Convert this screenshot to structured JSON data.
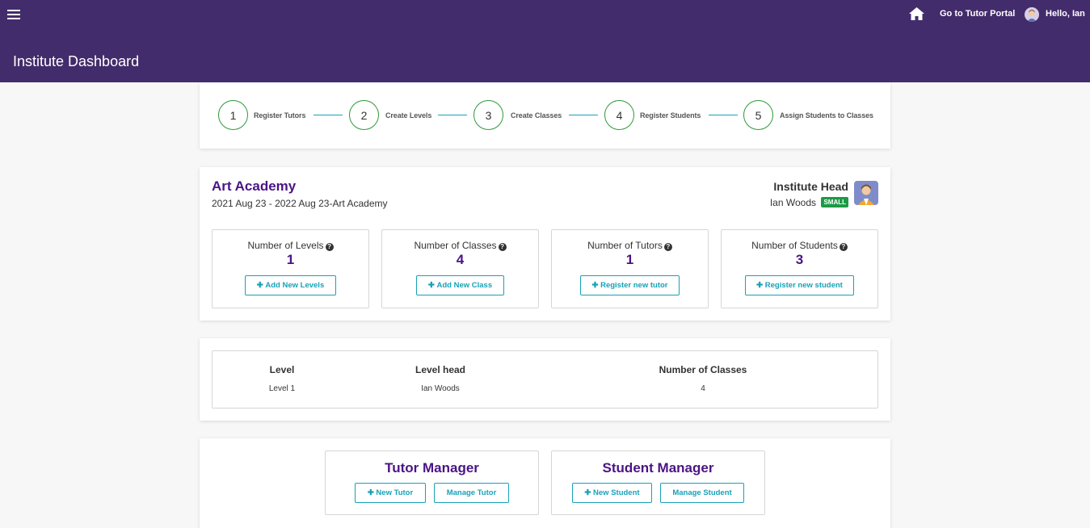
{
  "header": {
    "menu_icon": "hamburger-icon",
    "home_icon": "home-icon",
    "tutor_portal_label": "Go to Tutor Portal",
    "greeting": "Hello, Ian",
    "page_title": "Institute Dashboard"
  },
  "stepper": {
    "steps": [
      {
        "number": "1",
        "label": "Register Tutors"
      },
      {
        "number": "2",
        "label": "Create Levels"
      },
      {
        "number": "3",
        "label": "Create Classes"
      },
      {
        "number": "4",
        "label": "Register Students"
      },
      {
        "number": "5",
        "label": "Assign Students to Classes"
      }
    ],
    "accent": "#2e9a3a",
    "line_color": "#17a2b8"
  },
  "institute": {
    "name": "Art Academy",
    "period": "2021 Aug 23 - 2022 Aug 23-Art Academy",
    "head_title": "Institute Head",
    "head_name": "Ian Woods",
    "plan_badge": "SMALL",
    "stats": [
      {
        "label": "Number of Levels",
        "value": "1",
        "button": "Add New Levels"
      },
      {
        "label": "Number of Classes",
        "value": "4",
        "button": "Add New Class"
      },
      {
        "label": "Number of Tutors",
        "value": "1",
        "button": "Register new tutor"
      },
      {
        "label": "Number of Students",
        "value": "3",
        "button": "Register new student"
      }
    ]
  },
  "levels_table": {
    "columns": [
      "Level",
      "Level head",
      "Number of Classes"
    ],
    "rows": [
      [
        "Level 1",
        "Ian Woods",
        "4"
      ]
    ]
  },
  "managers": {
    "tutor": {
      "title": "Tutor Manager",
      "new_label": "New Tutor",
      "manage_label": "Manage Tutor"
    },
    "student": {
      "title": "Student Manager",
      "new_label": "New Student",
      "manage_label": "Manage Student"
    }
  },
  "colors": {
    "header_bg": "#432c6b",
    "title_purple": "#4a1486",
    "button_teal": "#17a2b8",
    "badge_green": "#1c9a46"
  }
}
